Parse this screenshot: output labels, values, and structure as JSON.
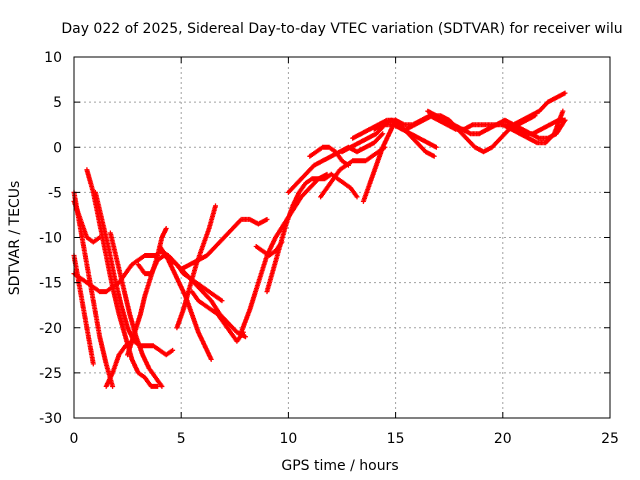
{
  "chart_data": {
    "type": "scatter",
    "title": "Day 022 of 2025, Sidereal Day-to-day VTEC variation (SDTVAR) for receiver wilu",
    "xlabel": "GPS time / hours",
    "ylabel": "SDTVAR / TECUs",
    "xlim": [
      0,
      25
    ],
    "ylim": [
      -30,
      10
    ],
    "xticks": [
      "0",
      "5",
      "10",
      "15",
      "20",
      "25"
    ],
    "yticks": [
      "-30",
      "-25",
      "-20",
      "-15",
      "-10",
      "-5",
      "0",
      "5",
      "10"
    ],
    "grid": true,
    "marker": "plus",
    "color": "#ff0000",
    "series": [
      {
        "x": [
          0.0,
          0.3,
          0.6,
          0.9,
          1.2,
          1.5,
          1.8
        ],
        "y": [
          -5.0,
          -9.0,
          -13.0,
          -17.0,
          -21.0,
          -24.0,
          -26.5
        ]
      },
      {
        "x": [
          1.5,
          1.8,
          2.1,
          2.4,
          2.7
        ],
        "y": [
          -26.5,
          -25.0,
          -23.0,
          -22.0,
          -21.5
        ]
      },
      {
        "x": [
          0.0,
          0.3,
          0.6,
          0.9
        ],
        "y": [
          -12.0,
          -16.0,
          -20.0,
          -24.0
        ]
      },
      {
        "x": [
          0.0,
          0.3,
          0.6,
          0.9,
          1.2
        ],
        "y": [
          -6.0,
          -8.0,
          -10.0,
          -10.5,
          -10.0
        ]
      },
      {
        "x": [
          0.6,
          0.9,
          1.2,
          1.5,
          1.8,
          2.1,
          2.4,
          2.7,
          3.0,
          3.3,
          3.6,
          3.9
        ],
        "y": [
          -2.5,
          -5.0,
          -8.5,
          -12.0,
          -15.5,
          -18.5,
          -21.0,
          -23.5,
          -25.0,
          -25.5,
          -26.5,
          -26.5
        ]
      },
      {
        "x": [
          0.0,
          0.3,
          0.6,
          0.9,
          1.2,
          1.5,
          1.8,
          2.1,
          2.4,
          2.7,
          3.0,
          3.3,
          3.6,
          3.9
        ],
        "y": [
          -14.0,
          -14.5,
          -15.0,
          -15.5,
          -16.0,
          -16.0,
          -15.5,
          -15.0,
          -14.0,
          -13.0,
          -12.5,
          -12.0,
          -12.0,
          -12.0
        ]
      },
      {
        "x": [
          1.0,
          1.3,
          1.6,
          1.9,
          2.2,
          2.5,
          2.8,
          3.1,
          3.4,
          3.7,
          4.0,
          4.3,
          4.6
        ],
        "y": [
          -5.0,
          -8.0,
          -11.0,
          -14.5,
          -17.5,
          -20.0,
          -21.5,
          -22.0,
          -22.0,
          -22.0,
          -22.5,
          -23.0,
          -22.5
        ]
      },
      {
        "x": [
          1.7,
          2.0,
          2.3,
          2.6,
          2.9,
          3.2,
          3.5,
          3.8,
          4.1
        ],
        "y": [
          -9.5,
          -12.5,
          -15.5,
          -18.5,
          -21.0,
          -23.0,
          -24.5,
          -25.5,
          -26.5
        ]
      },
      {
        "x": [
          2.5,
          2.7,
          2.9,
          3.1,
          3.3,
          3.5,
          3.7,
          3.9,
          4.1,
          4.3
        ],
        "y": [
          -23.0,
          -21.5,
          -20.0,
          -18.5,
          -16.5,
          -15.0,
          -13.5,
          -12.0,
          -10.0,
          -9.0
        ]
      },
      {
        "x": [
          3.0,
          3.3,
          3.6,
          3.9,
          4.2,
          4.5,
          4.8,
          5.1,
          5.4,
          5.7,
          6.0,
          6.3,
          6.6,
          6.9
        ],
        "y": [
          -13.0,
          -14.0,
          -14.0,
          -12.5,
          -12.0,
          -12.5,
          -13.0,
          -14.0,
          -14.5,
          -15.0,
          -15.5,
          -16.0,
          -16.5,
          -17.0
        ]
      },
      {
        "x": [
          4.0,
          4.3,
          4.6,
          4.9,
          5.2,
          5.5,
          5.8,
          6.1,
          6.4
        ],
        "y": [
          -11.0,
          -12.0,
          -13.5,
          -15.0,
          -16.5,
          -18.5,
          -20.5,
          -22.0,
          -23.5
        ]
      },
      {
        "x": [
          4.0,
          4.4,
          4.8,
          5.2,
          5.6,
          6.0,
          6.4,
          6.8,
          7.2,
          7.6,
          8.0
        ],
        "y": [
          -11.5,
          -12.0,
          -13.0,
          -14.0,
          -15.0,
          -16.0,
          -17.0,
          -18.5,
          -19.5,
          -20.5,
          -21.0
        ]
      },
      {
        "x": [
          4.8,
          5.1,
          5.4,
          5.7,
          6.0,
          6.3,
          6.6
        ],
        "y": [
          -20.0,
          -18.0,
          -15.5,
          -13.0,
          -11.0,
          -9.0,
          -6.5
        ]
      },
      {
        "x": [
          5.0,
          5.4,
          5.8,
          6.2,
          6.6,
          7.0,
          7.4,
          7.8,
          8.2,
          8.6,
          9.0
        ],
        "y": [
          -13.5,
          -13.0,
          -12.5,
          -12.0,
          -11.0,
          -10.0,
          -9.0,
          -8.0,
          -8.0,
          -8.5,
          -8.0
        ]
      },
      {
        "x": [
          5.5,
          5.8,
          6.1,
          6.4,
          6.7,
          7.0,
          7.3,
          7.6,
          7.9
        ],
        "y": [
          -16.0,
          -17.0,
          -17.5,
          -18.0,
          -18.5,
          -19.5,
          -20.5,
          -21.5,
          -20.5
        ]
      },
      {
        "x": [
          7.8,
          8.2,
          8.6,
          9.0,
          9.4,
          9.8,
          10.2,
          10.6,
          11.0,
          11.4,
          11.8
        ],
        "y": [
          -20.5,
          -18.0,
          -15.0,
          -12.0,
          -10.0,
          -8.5,
          -7.0,
          -5.5,
          -4.5,
          -3.5,
          -3.0
        ]
      },
      {
        "x": [
          8.5,
          8.8,
          9.1,
          9.4,
          9.7
        ],
        "y": [
          -11.0,
          -11.5,
          -12.0,
          -11.5,
          -10.5
        ]
      },
      {
        "x": [
          9.0,
          9.3,
          9.6,
          9.9,
          10.2,
          10.5,
          10.8,
          11.1,
          11.4,
          11.7,
          12.0,
          12.3,
          12.6,
          12.9,
          13.2
        ],
        "y": [
          -16.0,
          -13.5,
          -11.0,
          -8.5,
          -6.5,
          -5.0,
          -4.0,
          -3.5,
          -3.5,
          -3.5,
          -3.0,
          -3.5,
          -4.0,
          -4.5,
          -5.5
        ]
      },
      {
        "x": [
          10.0,
          10.4,
          10.8,
          11.2,
          11.6,
          12.0,
          12.4,
          12.8,
          13.2,
          13.6,
          14.0,
          14.4
        ],
        "y": [
          -5.0,
          -4.0,
          -3.0,
          -2.0,
          -1.5,
          -1.0,
          -0.5,
          0.0,
          -0.5,
          0.0,
          0.5,
          1.5
        ]
      },
      {
        "x": [
          11.0,
          11.3,
          11.6,
          11.9,
          12.2,
          12.5,
          12.8
        ],
        "y": [
          -1.0,
          -0.5,
          0.0,
          0.0,
          -0.5,
          -1.5,
          -2.0
        ]
      },
      {
        "x": [
          11.5,
          11.8,
          12.1,
          12.4,
          12.7,
          13.0,
          13.3,
          13.6,
          13.9,
          14.2,
          14.5
        ],
        "y": [
          -5.5,
          -4.5,
          -3.5,
          -2.5,
          -2.0,
          -1.5,
          -1.5,
          -1.5,
          -1.0,
          -0.5,
          0.0
        ]
      },
      {
        "x": [
          13.5,
          13.8,
          14.1,
          14.4,
          14.7,
          15.0
        ],
        "y": [
          -6.0,
          -4.0,
          -2.0,
          0.0,
          1.5,
          3.0
        ]
      },
      {
        "x": [
          12.5,
          12.9,
          13.3,
          13.7,
          14.1,
          14.5,
          14.9,
          15.3,
          15.7,
          16.1,
          16.5,
          16.9
        ],
        "y": [
          -0.5,
          0.0,
          0.5,
          1.0,
          1.5,
          2.5,
          2.5,
          2.0,
          1.5,
          1.0,
          0.5,
          0.0
        ]
      },
      {
        "x": [
          13.0,
          13.4,
          13.8,
          14.2,
          14.6,
          15.0,
          15.4,
          15.8,
          16.2,
          16.6,
          17.0,
          17.4,
          17.8,
          18.2,
          18.6,
          19.0,
          19.4,
          19.8,
          20.2,
          20.6,
          21.0,
          21.4,
          21.8,
          22.2,
          22.6,
          22.9
        ],
        "y": [
          1.0,
          1.5,
          2.0,
          2.5,
          3.0,
          3.0,
          2.5,
          2.5,
          3.0,
          3.5,
          3.0,
          2.5,
          2.0,
          2.0,
          2.5,
          2.5,
          2.5,
          2.5,
          2.5,
          2.0,
          1.5,
          1.5,
          2.0,
          2.5,
          3.0,
          3.0
        ]
      },
      {
        "x": [
          14.0,
          14.4,
          14.8,
          15.2,
          15.6,
          16.0,
          16.4,
          16.8
        ],
        "y": [
          2.0,
          2.5,
          3.0,
          2.5,
          1.5,
          0.5,
          -0.5,
          -1.0
        ]
      },
      {
        "x": [
          15.5,
          15.9,
          16.3,
          16.7,
          17.1,
          17.5,
          17.9,
          18.3,
          18.7,
          19.1,
          19.5,
          19.9,
          20.3,
          20.7,
          21.1,
          21.5
        ],
        "y": [
          2.0,
          2.5,
          3.0,
          3.5,
          3.5,
          3.0,
          2.0,
          1.0,
          0.0,
          -0.5,
          0.0,
          1.0,
          2.0,
          2.5,
          3.0,
          3.5
        ]
      },
      {
        "x": [
          16.5,
          16.9,
          17.3,
          17.7,
          18.1,
          18.5,
          18.9,
          19.3,
          19.7,
          20.1,
          20.5,
          20.9,
          21.3,
          21.7,
          22.1,
          22.5,
          22.9
        ],
        "y": [
          4.0,
          3.5,
          3.0,
          2.5,
          2.0,
          1.5,
          1.5,
          2.0,
          2.5,
          3.0,
          2.5,
          2.0,
          1.5,
          1.0,
          1.0,
          1.5,
          3.0
        ]
      },
      {
        "x": [
          20.0,
          20.4,
          20.8,
          21.2,
          21.6,
          22.0,
          22.4,
          22.8
        ],
        "y": [
          2.5,
          2.0,
          1.5,
          1.0,
          0.5,
          0.5,
          1.5,
          4.0
        ]
      },
      {
        "x": [
          20.5,
          20.9,
          21.3,
          21.7,
          22.1,
          22.5,
          22.9
        ],
        "y": [
          2.5,
          3.0,
          3.5,
          4.0,
          5.0,
          5.5,
          6.0
        ]
      }
    ]
  }
}
